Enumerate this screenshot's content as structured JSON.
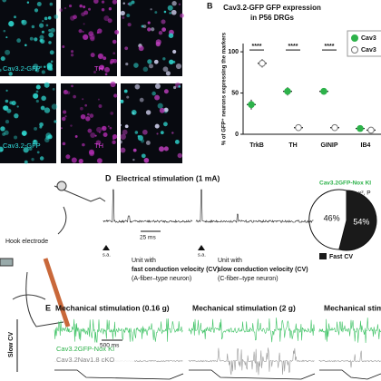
{
  "panel_a": {
    "gfp_label": "Cav3.2-GFP",
    "th_label": "TH"
  },
  "chart_data": [
    {
      "type": "dot",
      "panel": "B",
      "title": "Cav3.2-GFP GFP expression",
      "subtitle": "in P56 DRGs",
      "ylabel": "% of GFP⁺ neurons expressing the markers",
      "categories": [
        "TrkB",
        "TH",
        "GINIP",
        "IB4"
      ],
      "series": [
        {
          "name": "Cav3",
          "color": "#2db24a",
          "values": [
            36,
            52,
            52,
            7
          ],
          "errors": [
            6,
            5,
            4,
            3
          ]
        },
        {
          "name": "Cav3",
          "color": "#ffffff",
          "values": [
            86,
            8,
            8,
            5
          ],
          "errors": [
            5,
            3,
            4,
            2
          ]
        }
      ],
      "annotations": [
        "****",
        "****",
        "****"
      ],
      "ylim": [
        0,
        110
      ],
      "yticks": [
        0,
        50,
        100
      ]
    },
    {
      "type": "pie",
      "title": "Cav3.2GFP-Nox KI",
      "subtitle": "χ², P",
      "categories": [
        "Fast CV",
        null
      ],
      "values": [
        54,
        46
      ],
      "value_labels": [
        "54%",
        "46%"
      ],
      "colors": [
        "#1a1a1a",
        "#ffffff"
      ]
    }
  ],
  "panel_d": {
    "letter": "D",
    "title": "Electrical stimulation (1 mA)",
    "scale": "25 ms",
    "stim": "s.a.",
    "fast_unit": [
      "Unit with",
      "fast conduction velocity (CV)",
      "(A-fiber–type neuron)"
    ],
    "slow_unit": [
      "Unit with",
      "slow conduction velocity (CV)",
      "(C-fiber–type neuron)"
    ],
    "electrode": "Hook electrode"
  },
  "panel_e": {
    "letter": "E",
    "titles": [
      "Mechanical stimulation (0.16 g)",
      "Mechanical stimulation (2 g)",
      "Mechanical stimulation"
    ],
    "row_label": "Slow CV",
    "ki_label": "Cav3.2GFP-Nox KI",
    "cko_label": "Cav3.2Nav1.8 cKO",
    "scale": "500 ms"
  }
}
